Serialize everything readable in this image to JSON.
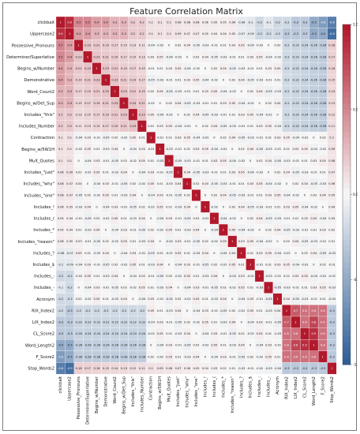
{
  "chart_data": {
    "type": "heatmap",
    "title": "Feature Correlation Matrix",
    "features": [
      "clickbait",
      "Uppercase2",
      "Possessive_Pronouns",
      "Determiner/Superlative",
      "Begins_w/Number",
      "Demonstrative",
      "Word_Count2",
      "Begins_w/Det_Sup",
      "Includes_\"this\"",
      "Includes_Number",
      "Contraction",
      "Begins_w/5W1H",
      "Mult_Quotes",
      "Includes_\"just\"",
      "Includes_\"why\"",
      "Includes_\"one\"",
      "Includes_!",
      "Includes_(",
      "Includes_*",
      "Includes_\"reason\"",
      "Includes_?",
      "Includes_$",
      "Includes_:",
      "Includes_-",
      "Acronym",
      "RIX_Index2",
      "LIX_Index2",
      "CL_Score2",
      "Word_Length2",
      "F_Score2",
      "Stop_Words2"
    ],
    "row0": [
      1,
      0.9,
      0.5,
      0.5,
      0.4,
      0.4,
      0.3,
      0.3,
      0.2,
      0.2,
      0.1,
      0.1,
      0.1,
      0.08,
      0.08,
      0.08,
      0.06,
      0.05,
      0.05,
      0.06,
      -0.08,
      -0.1,
      -0.2,
      -0.1,
      -0.2,
      -0.2,
      -0.3,
      -0.3,
      -0.5,
      -0.6,
      -0.8
    ],
    "row1": [
      0.9,
      1,
      0.4,
      0.4,
      0.3,
      0.3,
      0.3,
      0.3,
      0.2,
      0.2,
      0.1,
      0.1,
      0.1,
      0.09,
      0.07,
      0.07,
      0.05,
      0.04,
      0.04,
      0.05,
      -0.07,
      -0.09,
      -0.2,
      -0.2,
      -0.2,
      -0.3,
      -0.3,
      -0.3,
      -0.5,
      -0.5,
      -0.9
    ],
    "colorbar": {
      "min": -1,
      "max": 1,
      "colors": [
        "#2f5f98",
        "#f7f7f7",
        "#b2182b"
      ]
    },
    "legend_position": "right"
  }
}
